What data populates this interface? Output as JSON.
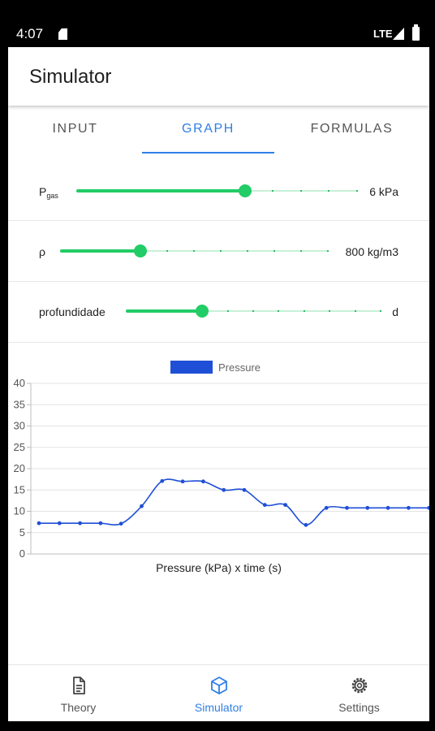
{
  "status_bar": {
    "time": "4:07",
    "network": "LTE"
  },
  "app_bar": {
    "title": "Simulator"
  },
  "tabs": [
    {
      "label": "INPUT",
      "active": false
    },
    {
      "label": "GRAPH",
      "active": true
    },
    {
      "label": "FORMULAS",
      "active": false
    }
  ],
  "sliders": [
    {
      "label_main": "P",
      "label_sub": "gas",
      "value": "6 kPa",
      "position": 0.6,
      "ticks": 10
    },
    {
      "label_main": "ρ",
      "label_sub": "",
      "value": "800 kg/m3",
      "position": 0.3,
      "ticks": 10
    },
    {
      "label_main": "profundidade",
      "label_sub": "",
      "value": "d",
      "position": 0.3,
      "ticks": 10
    }
  ],
  "chart_data": {
    "type": "line",
    "title": "",
    "xlabel": "Pressure (kPa) x time (s)",
    "ylabel": "",
    "ylim": [
      0,
      40
    ],
    "yticks": [
      0,
      5,
      10,
      15,
      20,
      25,
      30,
      35,
      40
    ],
    "grid": true,
    "legend_position": "top-center",
    "series": [
      {
        "name": "Pressure",
        "color": "#1f4fd6",
        "x": [
          0,
          1,
          2,
          3,
          4,
          5,
          6,
          7,
          8,
          9,
          10,
          11,
          12,
          13,
          14,
          15,
          16,
          17,
          18,
          19
        ],
        "values": [
          7.2,
          7.2,
          7.2,
          7.2,
          7.1,
          11.2,
          17.1,
          17.0,
          17.0,
          15.0,
          15.0,
          11.5,
          11.5,
          6.8,
          10.8,
          10.8,
          10.8,
          10.8,
          10.8,
          10.8
        ]
      }
    ]
  },
  "bottom_nav": [
    {
      "label": "Theory",
      "icon": "document-icon",
      "active": false
    },
    {
      "label": "Simulator",
      "icon": "cube-icon",
      "active": true
    },
    {
      "label": "Settings",
      "icon": "gear-icon",
      "active": false
    }
  ],
  "colors": {
    "accent": "#2f7fe5",
    "slider": "#22cc66",
    "series": "#1f4fd6"
  }
}
